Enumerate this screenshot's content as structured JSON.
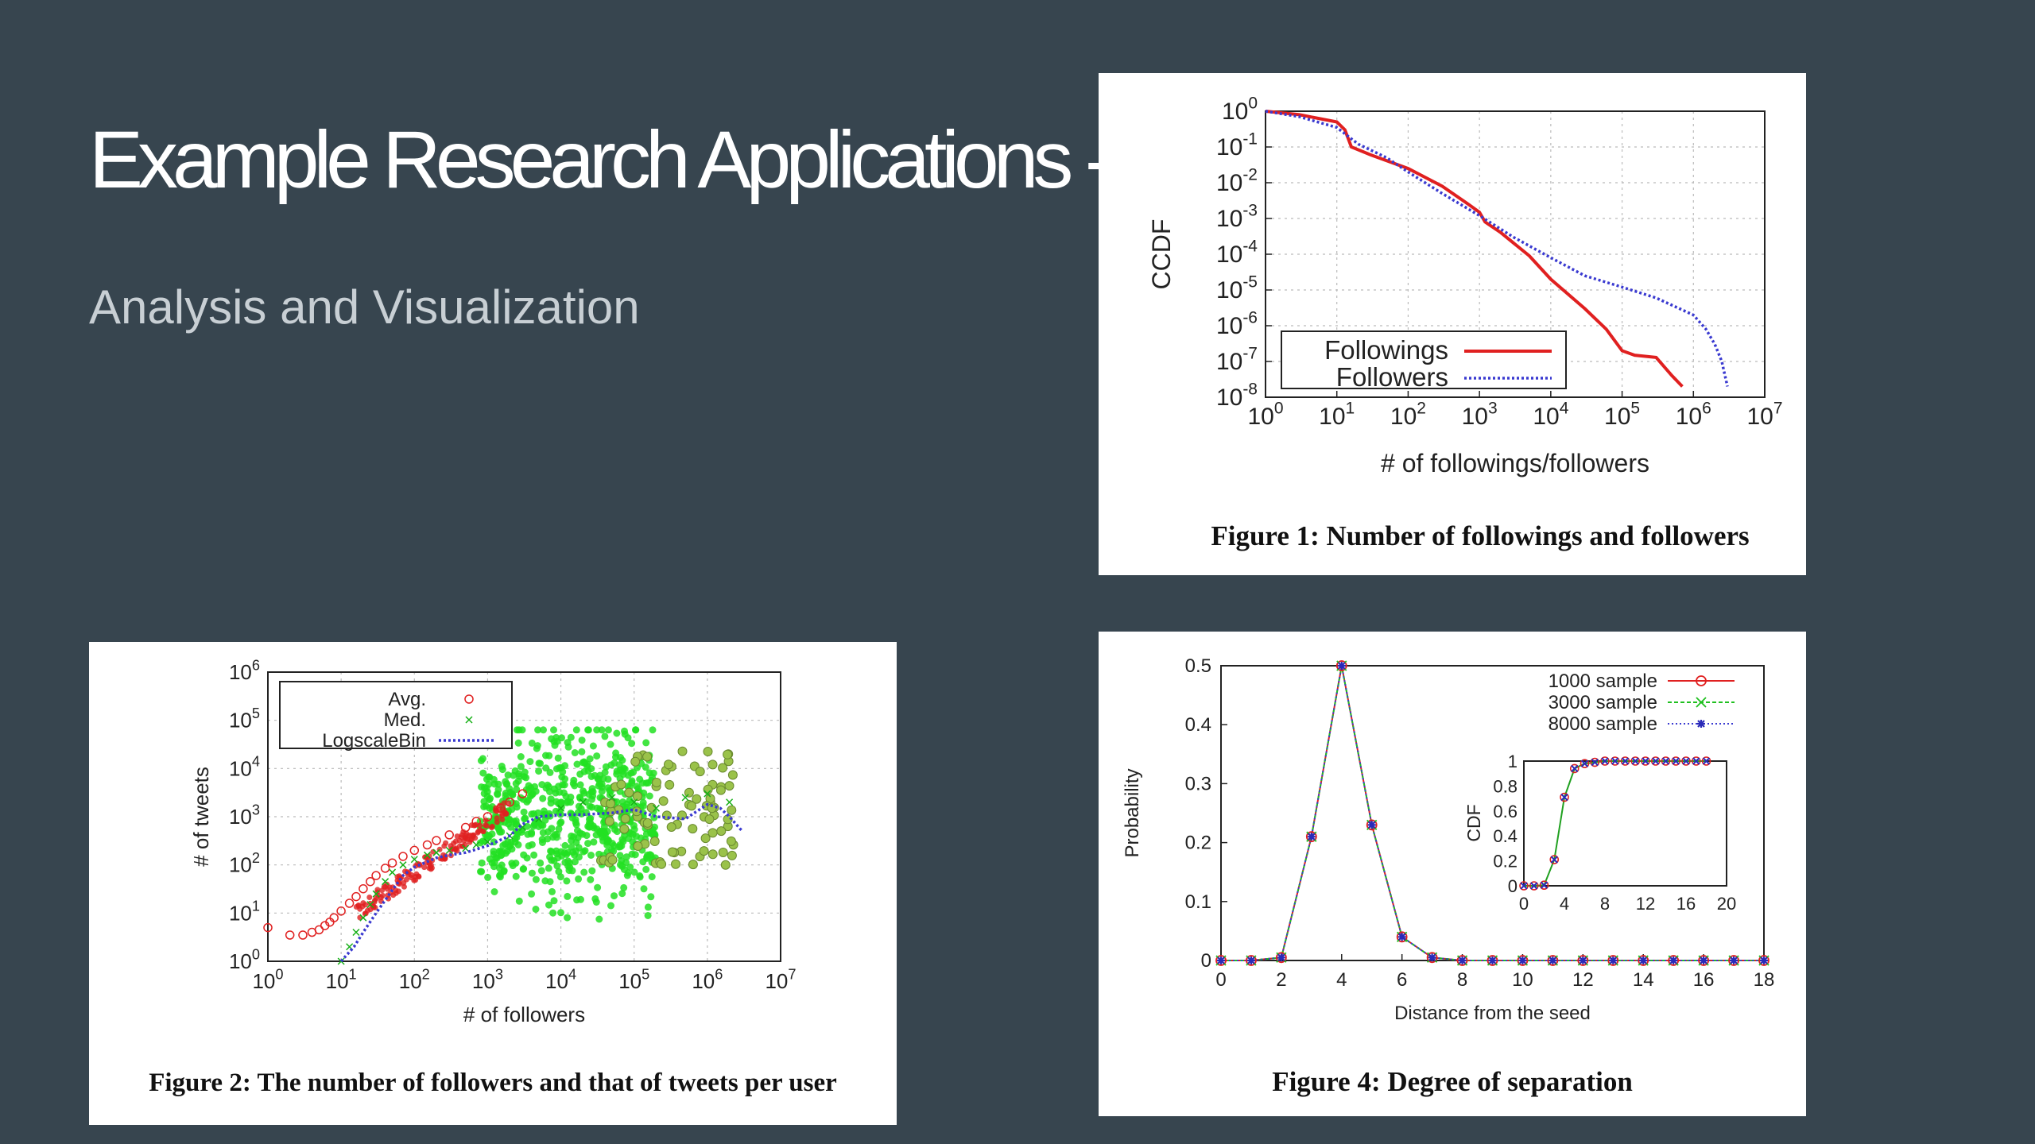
{
  "slide": {
    "title": "Example Research Applications - T",
    "subtitle": "Analysis and Visualization"
  },
  "colors": {
    "background": "#37454f",
    "red": "#e02020",
    "blue": "#3a3ad0",
    "green": "#22e022"
  },
  "chart_data": [
    {
      "id": "fig1",
      "type": "line",
      "caption": "Figure 1: Number of followings and followers",
      "xlabel": "# of followings/followers",
      "ylabel": "CCDF",
      "x_scale": "log",
      "y_scale": "log",
      "xlim": [
        1,
        10000000
      ],
      "ylim": [
        1e-08,
        1
      ],
      "x_ticks": [
        "10^0",
        "10^1",
        "10^2",
        "10^3",
        "10^4",
        "10^5",
        "10^6",
        "10^7"
      ],
      "y_ticks": [
        "10^0",
        "10^-1",
        "10^-2",
        "10^-3",
        "10^-4",
        "10^-5",
        "10^-6",
        "10^-7",
        "10^-8"
      ],
      "legend": "bottom-left",
      "series": [
        {
          "name": "Followings",
          "x": [
            1,
            3,
            10,
            13,
            16,
            30,
            100,
            300,
            700,
            1000,
            1200,
            2000,
            5000,
            10000,
            30000,
            60000,
            100000,
            150000,
            300000,
            500000,
            700000
          ],
          "y": [
            1,
            0.8,
            0.5,
            0.3,
            0.1,
            0.06,
            0.025,
            0.008,
            0.0025,
            0.0015,
            0.0008,
            0.0004,
            9e-05,
            2e-05,
            3e-06,
            8e-07,
            2e-07,
            1.5e-07,
            1.3e-07,
            4e-08,
            2e-08
          ]
        },
        {
          "name": "Followers",
          "x": [
            1,
            3,
            10,
            20,
            50,
            100,
            300,
            1000,
            3000,
            10000,
            30000,
            100000,
            300000,
            1000000,
            1500000,
            2000000,
            2500000,
            3000000
          ],
          "y": [
            1,
            0.7,
            0.35,
            0.12,
            0.05,
            0.02,
            0.005,
            0.0012,
            0.0003,
            8e-05,
            2.5e-05,
            1.2e-05,
            6e-06,
            2e-06,
            8e-07,
            3e-07,
            1e-07,
            2e-08
          ]
        }
      ]
    },
    {
      "id": "fig2",
      "type": "scatter",
      "caption": "Figure 2: The number of followers and that of tweets per user",
      "xlabel": "# of followers",
      "ylabel": "# of tweets",
      "x_scale": "log",
      "y_scale": "log",
      "xlim": [
        1,
        10000000
      ],
      "ylim": [
        1,
        1000000
      ],
      "x_ticks": [
        "10^0",
        "10^1",
        "10^2",
        "10^3",
        "10^4",
        "10^5",
        "10^6",
        "10^7"
      ],
      "y_ticks": [
        "10^6",
        "10^5",
        "10^4",
        "10^3",
        "10^2",
        "10^1",
        "10^0"
      ],
      "legend": "top-left",
      "series": [
        {
          "name": "Avg.",
          "x": [
            1,
            2,
            3,
            4,
            5,
            6,
            7,
            8,
            10,
            13,
            16,
            20,
            25,
            30,
            40,
            50,
            70,
            100,
            150,
            200,
            300,
            500,
            700,
            1000,
            1500,
            2000,
            3000
          ],
          "y": [
            5,
            3.5,
            3.5,
            4,
            4.5,
            5.5,
            6.5,
            8,
            11,
            16,
            22,
            32,
            45,
            60,
            85,
            110,
            150,
            200,
            260,
            320,
            420,
            600,
            800,
            1000,
            1500,
            2000,
            3000
          ]
        },
        {
          "name": "Med.",
          "x": [
            10,
            13,
            16,
            20,
            25,
            30,
            40,
            50,
            70,
            100,
            150,
            200,
            300,
            500,
            700,
            1000,
            2000,
            3000,
            5000,
            10000,
            20000,
            50000,
            100000,
            200000,
            500000,
            1000000,
            2000000
          ],
          "y": [
            1,
            2,
            4,
            8,
            15,
            25,
            45,
            70,
            100,
            130,
            160,
            180,
            200,
            220,
            260,
            300,
            400,
            600,
            900,
            1500,
            2000,
            2500,
            2000,
            1500,
            2500,
            3000,
            2000
          ]
        },
        {
          "name": "LogscaleBin",
          "x": [
            10,
            15,
            20,
            30,
            50,
            70,
            100,
            200,
            300,
            500,
            700,
            1000,
            2000,
            3000,
            5000,
            10000,
            20000,
            50000,
            100000,
            200000,
            500000,
            1000000,
            1500000,
            2000000,
            3000000
          ],
          "y": [
            1,
            2,
            4,
            10,
            30,
            60,
            90,
            140,
            160,
            180,
            210,
            250,
            400,
            700,
            1000,
            1100,
            1100,
            1200,
            1400,
            1000,
            900,
            1800,
            1500,
            1000,
            500
          ]
        }
      ]
    },
    {
      "id": "fig4",
      "type": "line",
      "caption": "Figure 4: Degree of separation",
      "xlabel": "Distance from the seed",
      "ylabel": "Probability",
      "xlim": [
        0,
        18
      ],
      "ylim": [
        0,
        0.5
      ],
      "x_ticks": [
        0,
        2,
        4,
        6,
        8,
        10,
        12,
        14,
        16,
        18
      ],
      "y_ticks": [
        0,
        0.1,
        0.2,
        0.3,
        0.4,
        0.5
      ],
      "legend": "top-right",
      "x": [
        0,
        1,
        2,
        3,
        4,
        5,
        6,
        7,
        8,
        9,
        10,
        11,
        12,
        13,
        14,
        15,
        16,
        17,
        18
      ],
      "series": [
        {
          "name": "1000 sample",
          "values": [
            0,
            0,
            0.005,
            0.21,
            0.5,
            0.23,
            0.04,
            0.005,
            0,
            0,
            0,
            0,
            0,
            0,
            0,
            0,
            0,
            0,
            0
          ]
        },
        {
          "name": "3000 sample",
          "values": [
            0,
            0,
            0.005,
            0.21,
            0.5,
            0.23,
            0.04,
            0.005,
            0,
            0,
            0,
            0,
            0,
            0,
            0,
            0,
            0,
            0,
            0
          ]
        },
        {
          "name": "8000 sample",
          "values": [
            0,
            0,
            0.005,
            0.21,
            0.5,
            0.23,
            0.04,
            0.005,
            0,
            0,
            0,
            0,
            0,
            0,
            0,
            0,
            0,
            0,
            0
          ]
        }
      ],
      "inset": {
        "ylabel": "CDF",
        "xlim": [
          0,
          20
        ],
        "ylim": [
          0,
          1
        ],
        "x_ticks": [
          0,
          4,
          8,
          12,
          16,
          20
        ],
        "y_ticks": [
          0,
          0.2,
          0.4,
          0.6,
          0.8,
          1
        ],
        "x": [
          0,
          1,
          2,
          3,
          4,
          5,
          6,
          7,
          8,
          9,
          10,
          11,
          12,
          13,
          14,
          15,
          16,
          17,
          18
        ],
        "values": [
          0,
          0,
          0.005,
          0.21,
          0.71,
          0.94,
          0.98,
          0.99,
          1,
          1,
          1,
          1,
          1,
          1,
          1,
          1,
          1,
          1,
          1
        ]
      }
    }
  ]
}
